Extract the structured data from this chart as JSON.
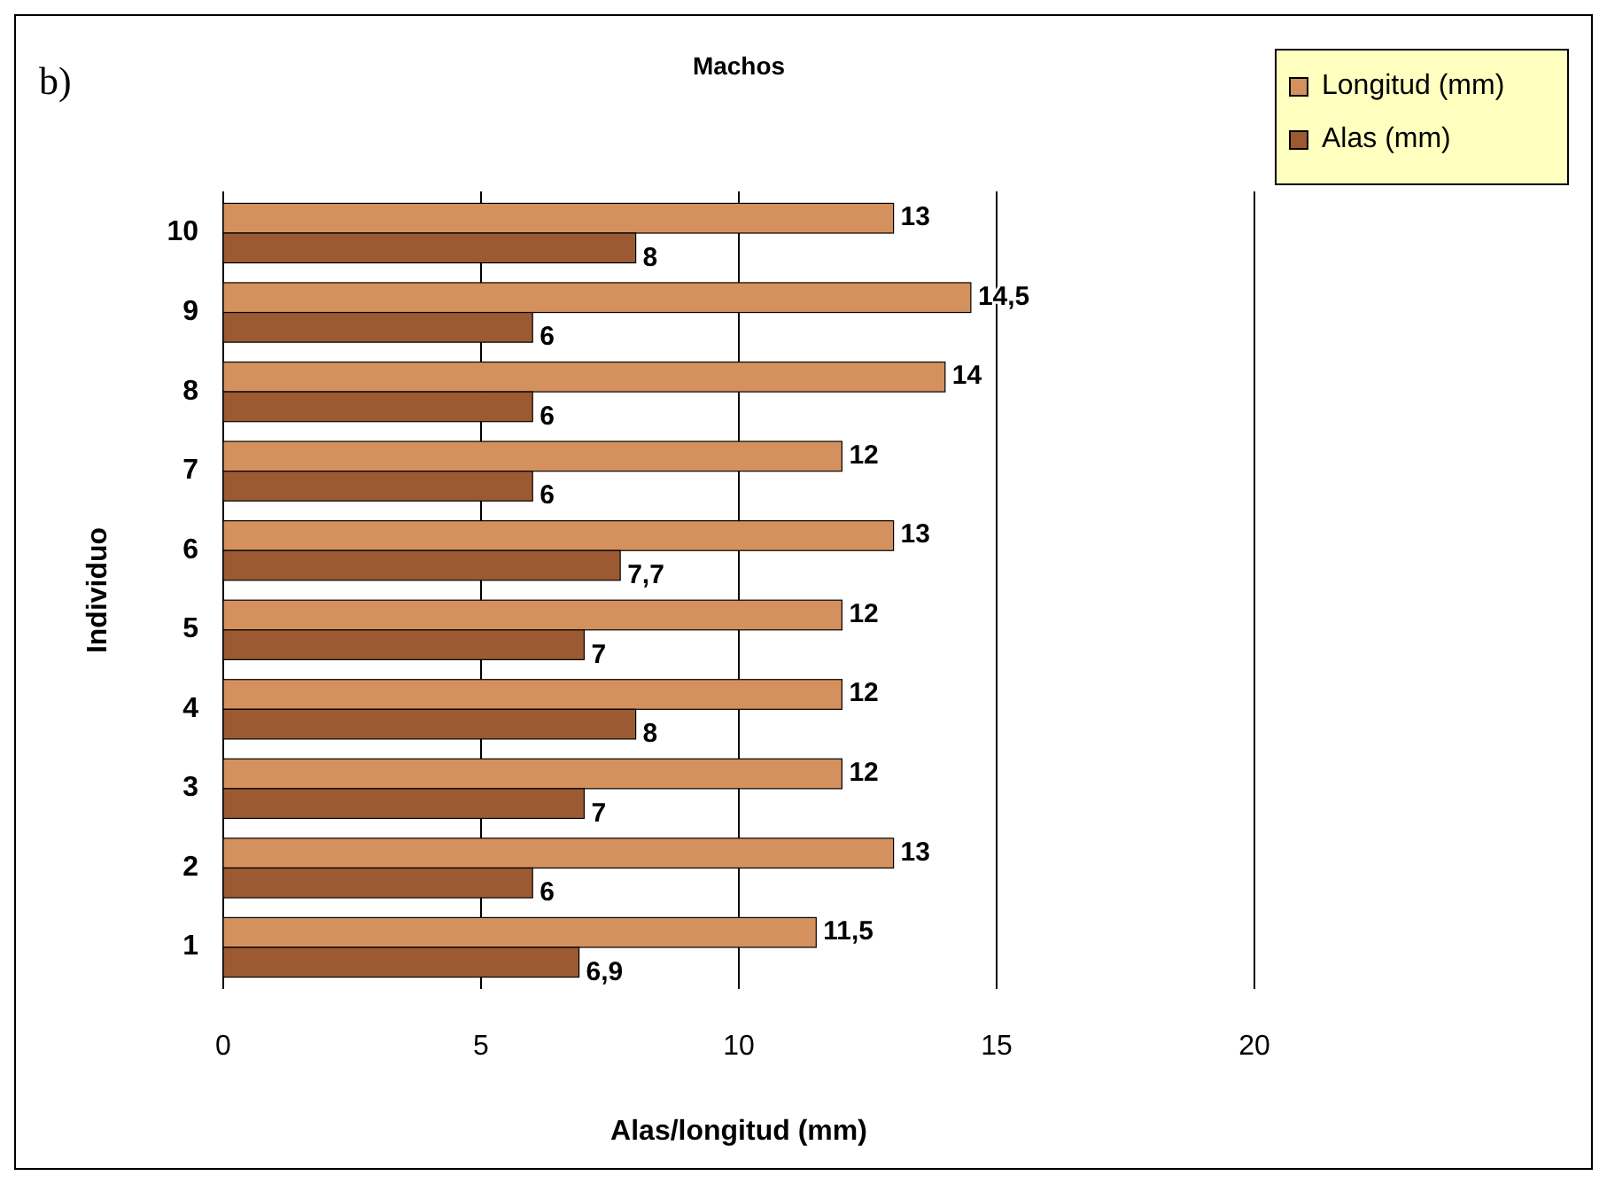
{
  "chart_data": {
    "type": "bar",
    "orientation": "horizontal",
    "title": "Machos",
    "xlabel": "Alas/longitud (mm)",
    "ylabel": "Individuo",
    "annotations": [
      "b)"
    ],
    "categories": [
      "10",
      "9",
      "8",
      "7",
      "6",
      "5",
      "4",
      "3",
      "2",
      "1"
    ],
    "series": [
      {
        "name": "Longitud (mm)",
        "color": "#d4915e",
        "values": [
          13,
          14.5,
          14,
          12,
          13,
          12,
          12,
          12,
          13,
          11.5
        ],
        "value_labels": [
          "13",
          "14,5",
          "14",
          "12",
          "13",
          "12",
          "12",
          "12",
          "13",
          "11,5"
        ]
      },
      {
        "name": "Alas (mm)",
        "color": "#9c5a32",
        "values": [
          8,
          6,
          6,
          6,
          7.7,
          7,
          8,
          7,
          6,
          6.9
        ],
        "value_labels": [
          "8",
          "6",
          "6",
          "6",
          "7,7",
          "7",
          "8",
          "7",
          "6",
          "6,9"
        ]
      }
    ],
    "xlim": [
      0,
      20
    ],
    "xticks": [
      0,
      5,
      10,
      15,
      20
    ],
    "grid": "x",
    "legend": "top right"
  }
}
